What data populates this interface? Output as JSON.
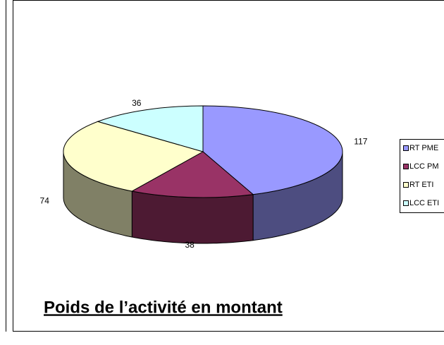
{
  "chart_data": {
    "type": "pie",
    "title": "Poids de l’activité en montant",
    "categories": [
      "RT PME",
      "LCC PM",
      "RT ETI",
      "LCC ETI"
    ],
    "values": [
      117,
      38,
      74,
      36
    ],
    "colors": [
      "#9999ff",
      "#993366",
      "#ffffcc",
      "#ccffff"
    ]
  }
}
